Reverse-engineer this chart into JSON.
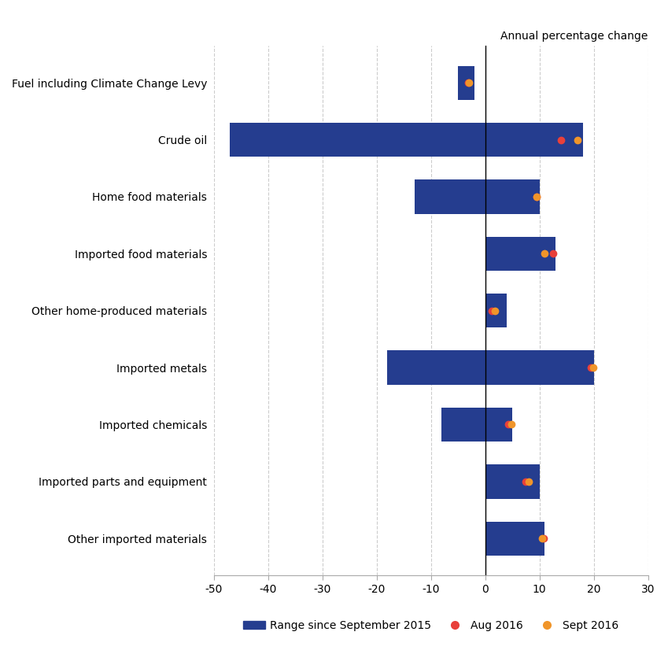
{
  "categories": [
    "Fuel including Climate Change Levy",
    "Crude oil",
    "Home food materials",
    "Imported food materials",
    "Other home-produced materials",
    "Imported metals",
    "Imported chemicals",
    "Imported parts and equipment",
    "Other imported materials"
  ],
  "bar_left": [
    -5,
    -47,
    -13,
    0,
    0,
    -18,
    -8,
    0,
    0
  ],
  "bar_right": [
    -2,
    18,
    10,
    13,
    4,
    20,
    5,
    10,
    11
  ],
  "aug2016": [
    -3.2,
    14.0,
    9.5,
    12.5,
    1.2,
    19.5,
    4.2,
    7.5,
    10.8
  ],
  "sept2016": [
    -3.0,
    17.0,
    9.5,
    11.0,
    1.8,
    19.9,
    4.8,
    8.0,
    10.5
  ],
  "bar_color": "#253d8f",
  "aug_color": "#e8403a",
  "sept_color": "#f0952a",
  "title": "Annual percentage change",
  "xlim": [
    -50,
    30
  ],
  "xticks": [
    -50,
    -40,
    -30,
    -20,
    -10,
    0,
    10,
    20,
    30
  ],
  "grid_color": "#cccccc",
  "spine_color": "#aaaaaa"
}
